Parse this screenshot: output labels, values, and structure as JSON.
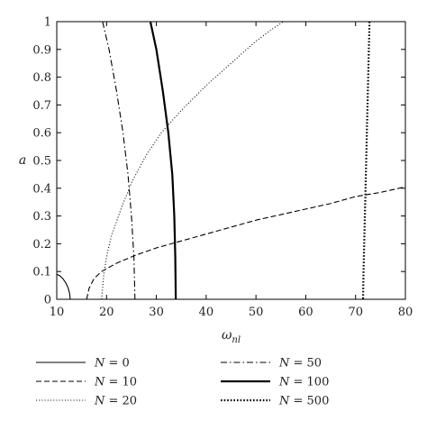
{
  "chart_data": {
    "type": "line",
    "title": "",
    "xlabel": "ω",
    "xlabel_sub": "nl",
    "ylabel": "a",
    "xlim": [
      10,
      80
    ],
    "ylim": [
      0,
      1
    ],
    "xticks": [
      10,
      20,
      30,
      40,
      50,
      60,
      70,
      80
    ],
    "yticks": [
      0,
      0.1,
      0.2,
      0.3,
      0.4,
      0.5,
      0.6,
      0.7,
      0.8,
      0.9,
      1
    ],
    "grid": false,
    "legend_position": "bottom",
    "series": [
      {
        "name": "N = 0",
        "style": "solid-thin",
        "color": "#000000",
        "points": [
          [
            10,
            0.09
          ],
          [
            10.6,
            0.085
          ],
          [
            11.2,
            0.075
          ],
          [
            11.8,
            0.06
          ],
          [
            12.3,
            0.04
          ],
          [
            12.6,
            0.02
          ],
          [
            12.7,
            0
          ]
        ]
      },
      {
        "name": "N = 10",
        "style": "dashed",
        "color": "#000000",
        "points": [
          [
            16,
            0
          ],
          [
            16.5,
            0.04
          ],
          [
            17.5,
            0.075
          ],
          [
            19,
            0.1
          ],
          [
            22,
            0.13
          ],
          [
            26,
            0.16
          ],
          [
            30,
            0.185
          ],
          [
            35,
            0.21
          ],
          [
            40,
            0.235
          ],
          [
            45,
            0.26
          ],
          [
            50,
            0.285
          ],
          [
            55,
            0.305
          ],
          [
            60,
            0.325
          ],
          [
            65,
            0.345
          ],
          [
            70,
            0.37
          ],
          [
            75,
            0.385
          ],
          [
            80,
            0.405
          ]
        ]
      },
      {
        "name": "N = 20",
        "style": "dotted",
        "color": "#000000",
        "points": [
          [
            19,
            0
          ],
          [
            19.5,
            0.1
          ],
          [
            20.2,
            0.17
          ],
          [
            21,
            0.23
          ],
          [
            23,
            0.33
          ],
          [
            25,
            0.42
          ],
          [
            28,
            0.52
          ],
          [
            31,
            0.6
          ],
          [
            35,
            0.68
          ],
          [
            40,
            0.77
          ],
          [
            45,
            0.85
          ],
          [
            50,
            0.93
          ],
          [
            53,
            0.97
          ],
          [
            55.5,
            1.0
          ]
        ]
      },
      {
        "name": "N = 50",
        "style": "dash-dot",
        "color": "#000000",
        "points": [
          [
            19.2,
            1.0
          ],
          [
            20.5,
            0.9
          ],
          [
            22,
            0.75
          ],
          [
            23.3,
            0.6
          ],
          [
            24.3,
            0.45
          ],
          [
            25,
            0.3
          ],
          [
            25.5,
            0.15
          ],
          [
            25.7,
            0
          ]
        ]
      },
      {
        "name": "N = 100",
        "style": "solid-thick",
        "color": "#000000",
        "points": [
          [
            28.8,
            1.0
          ],
          [
            30,
            0.9
          ],
          [
            31.3,
            0.75
          ],
          [
            32.4,
            0.6
          ],
          [
            33.2,
            0.45
          ],
          [
            33.6,
            0.3
          ],
          [
            33.8,
            0.15
          ],
          [
            33.9,
            0
          ]
        ]
      },
      {
        "name": "N = 500",
        "style": "dotted-thick",
        "color": "#000000",
        "points": [
          [
            72.8,
            1.0
          ],
          [
            72.6,
            0.85
          ],
          [
            72.4,
            0.7
          ],
          [
            72.2,
            0.55
          ],
          [
            72.0,
            0.4
          ],
          [
            71.8,
            0.25
          ],
          [
            71.6,
            0.1
          ],
          [
            71.5,
            0
          ]
        ]
      }
    ]
  }
}
